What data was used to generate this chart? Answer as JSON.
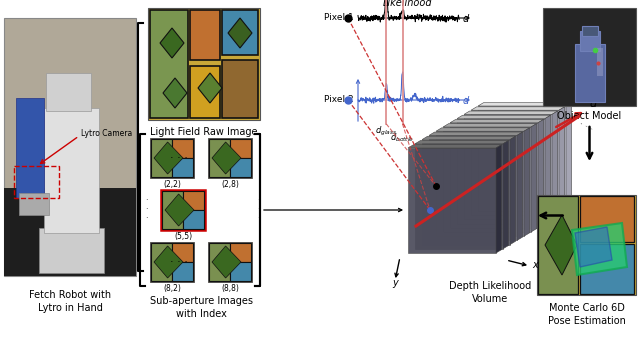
{
  "background_color": "#ffffff",
  "robot_label": "Fetch Robot with\nLytro in Hand",
  "lytro_label": "Lytro Camera",
  "lfri_label": "Light Field Raw Image",
  "sa_label": "Sub-aperture Images\nwith Index",
  "vol_label": "Depth Likelihood\nVolume",
  "obj_label": "Object Model",
  "pose_label": "Monte Carlo 6D\nPose Estimation",
  "likelihood_label": "Likelihood",
  "pixel1_label": "Pixel 1",
  "pixel2_label": "Pixel 2",
  "d_glass_label": "$d_{glass}$",
  "d_bottle_label": "$d_{bottle}$",
  "sa_indices": [
    "(2,2)",
    "(2,8)",
    "(5,5)",
    "(8,2)",
    "(8,8)"
  ],
  "arrow_color": "#cc0000",
  "blue_color": "#4466cc",
  "bracket_color": "#000000",
  "pixel1_color": "#111111",
  "pixel2_color": "#2244cc",
  "red_line_color": "#cc2222",
  "pink_line_color": "#dd8888",
  "vol_bg": "#333333",
  "obj_bg": "#282828",
  "slab_color_dark": "#505060",
  "slab_color_light": "#b0b0c0"
}
